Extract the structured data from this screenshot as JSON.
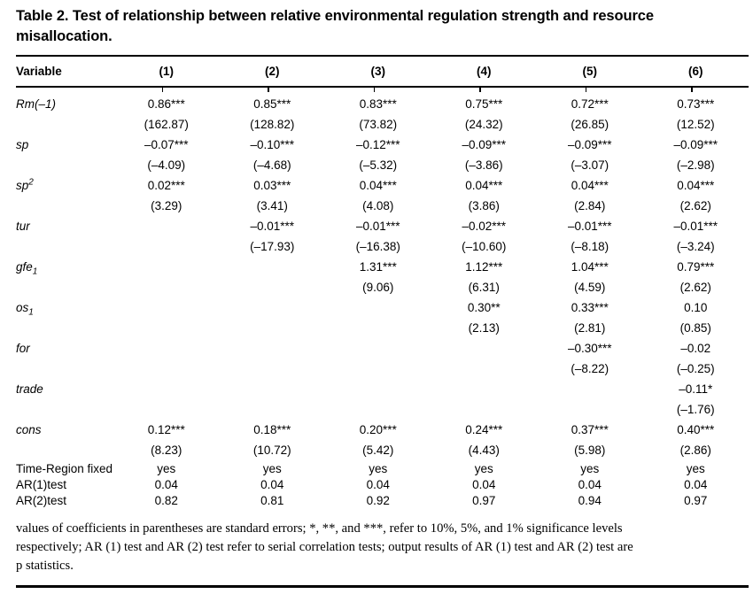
{
  "caption": {
    "line1": "Table 2.  Test of relationship between relative environmental regulation strength and resource",
    "line2": "misallocation."
  },
  "table": {
    "columns": [
      "Variable",
      "(1)",
      "(2)",
      "(3)",
      "(4)",
      "(5)",
      "(6)"
    ],
    "rows": [
      {
        "label": {
          "text": "Rm(–1)"
        },
        "coef": [
          "0.86***",
          "0.85***",
          "0.83***",
          "0.75***",
          "0.72***",
          "0.73***"
        ],
        "tstat": [
          "(162.87)",
          "(128.82)",
          "(73.82)",
          "(24.32)",
          "(26.85)",
          "(12.52)"
        ]
      },
      {
        "label": {
          "text": "sp"
        },
        "coef": [
          "–0.07***",
          "–0.10***",
          "–0.12***",
          "–0.09***",
          "–0.09***",
          "–0.09***"
        ],
        "tstat": [
          "(–4.09)",
          "(–4.68)",
          "(–5.32)",
          "(–3.86)",
          "(–3.07)",
          "(–2.98)"
        ]
      },
      {
        "label": {
          "text": "sp",
          "sup": "2"
        },
        "coef": [
          "0.02***",
          "0.03***",
          "0.04***",
          "0.04***",
          "0.04***",
          "0.04***"
        ],
        "tstat": [
          "(3.29)",
          "(3.41)",
          "(4.08)",
          "(3.86)",
          "(2.84)",
          "(2.62)"
        ]
      },
      {
        "label": {
          "text": "tur"
        },
        "coef": [
          "",
          "–0.01***",
          "–0.01***",
          "–0.02***",
          "–0.01***",
          "–0.01***"
        ],
        "tstat": [
          "",
          "(–17.93)",
          "(–16.38)",
          "(–10.60)",
          "(–8.18)",
          "(–3.24)"
        ]
      },
      {
        "label": {
          "text": "gfe",
          "sub": "1"
        },
        "coef": [
          "",
          "",
          "1.31***",
          "1.12***",
          "1.04***",
          "0.79***"
        ],
        "tstat": [
          "",
          "",
          "(9.06)",
          "(6.31)",
          "(4.59)",
          "(2.62)"
        ]
      },
      {
        "label": {
          "text": "os",
          "sub": "1"
        },
        "coef": [
          "",
          "",
          "",
          "0.30**",
          "0.33***",
          "0.10"
        ],
        "tstat": [
          "",
          "",
          "",
          "(2.13)",
          "(2.81)",
          "(0.85)"
        ]
      },
      {
        "label": {
          "text": "for"
        },
        "coef": [
          "",
          "",
          "",
          "",
          "–0.30***",
          "–0.02"
        ],
        "tstat": [
          "",
          "",
          "",
          "",
          "(–8.22)",
          "(–0.25)"
        ]
      },
      {
        "label": {
          "text": "trade"
        },
        "coef": [
          "",
          "",
          "",
          "",
          "",
          "–0.11*"
        ],
        "tstat": [
          "",
          "",
          "",
          "",
          "",
          "(–1.76)"
        ]
      },
      {
        "label": {
          "text": "cons"
        },
        "coef": [
          "0.12***",
          "0.18***",
          "0.20***",
          "0.24***",
          "0.37***",
          "0.40***"
        ],
        "tstat": [
          "(8.23)",
          "(10.72)",
          "(5.42)",
          "(4.43)",
          "(5.98)",
          "(2.86)"
        ]
      }
    ],
    "info_rows": [
      {
        "label": "Time-Region fixed",
        "values": [
          "yes",
          "yes",
          "yes",
          "yes",
          "yes",
          "yes"
        ]
      },
      {
        "label": "AR(1)test",
        "values": [
          "0.04",
          "0.04",
          "0.04",
          "0.04",
          "0.04",
          "0.04"
        ]
      },
      {
        "label": "AR(2)test",
        "values": [
          "0.82",
          "0.81",
          "0.92",
          "0.97",
          "0.94",
          "0.97"
        ]
      }
    ]
  },
  "footnote": {
    "line1": "values of coefficients in parentheses are standard errors; *, **, and ***, refer to 10%, 5%, and 1% significance levels",
    "line2": "respectively; AR (1) test and AR (2) test refer to serial correlation tests; output results of AR (1) test and AR (2) test are",
    "line3": "p statistics."
  }
}
